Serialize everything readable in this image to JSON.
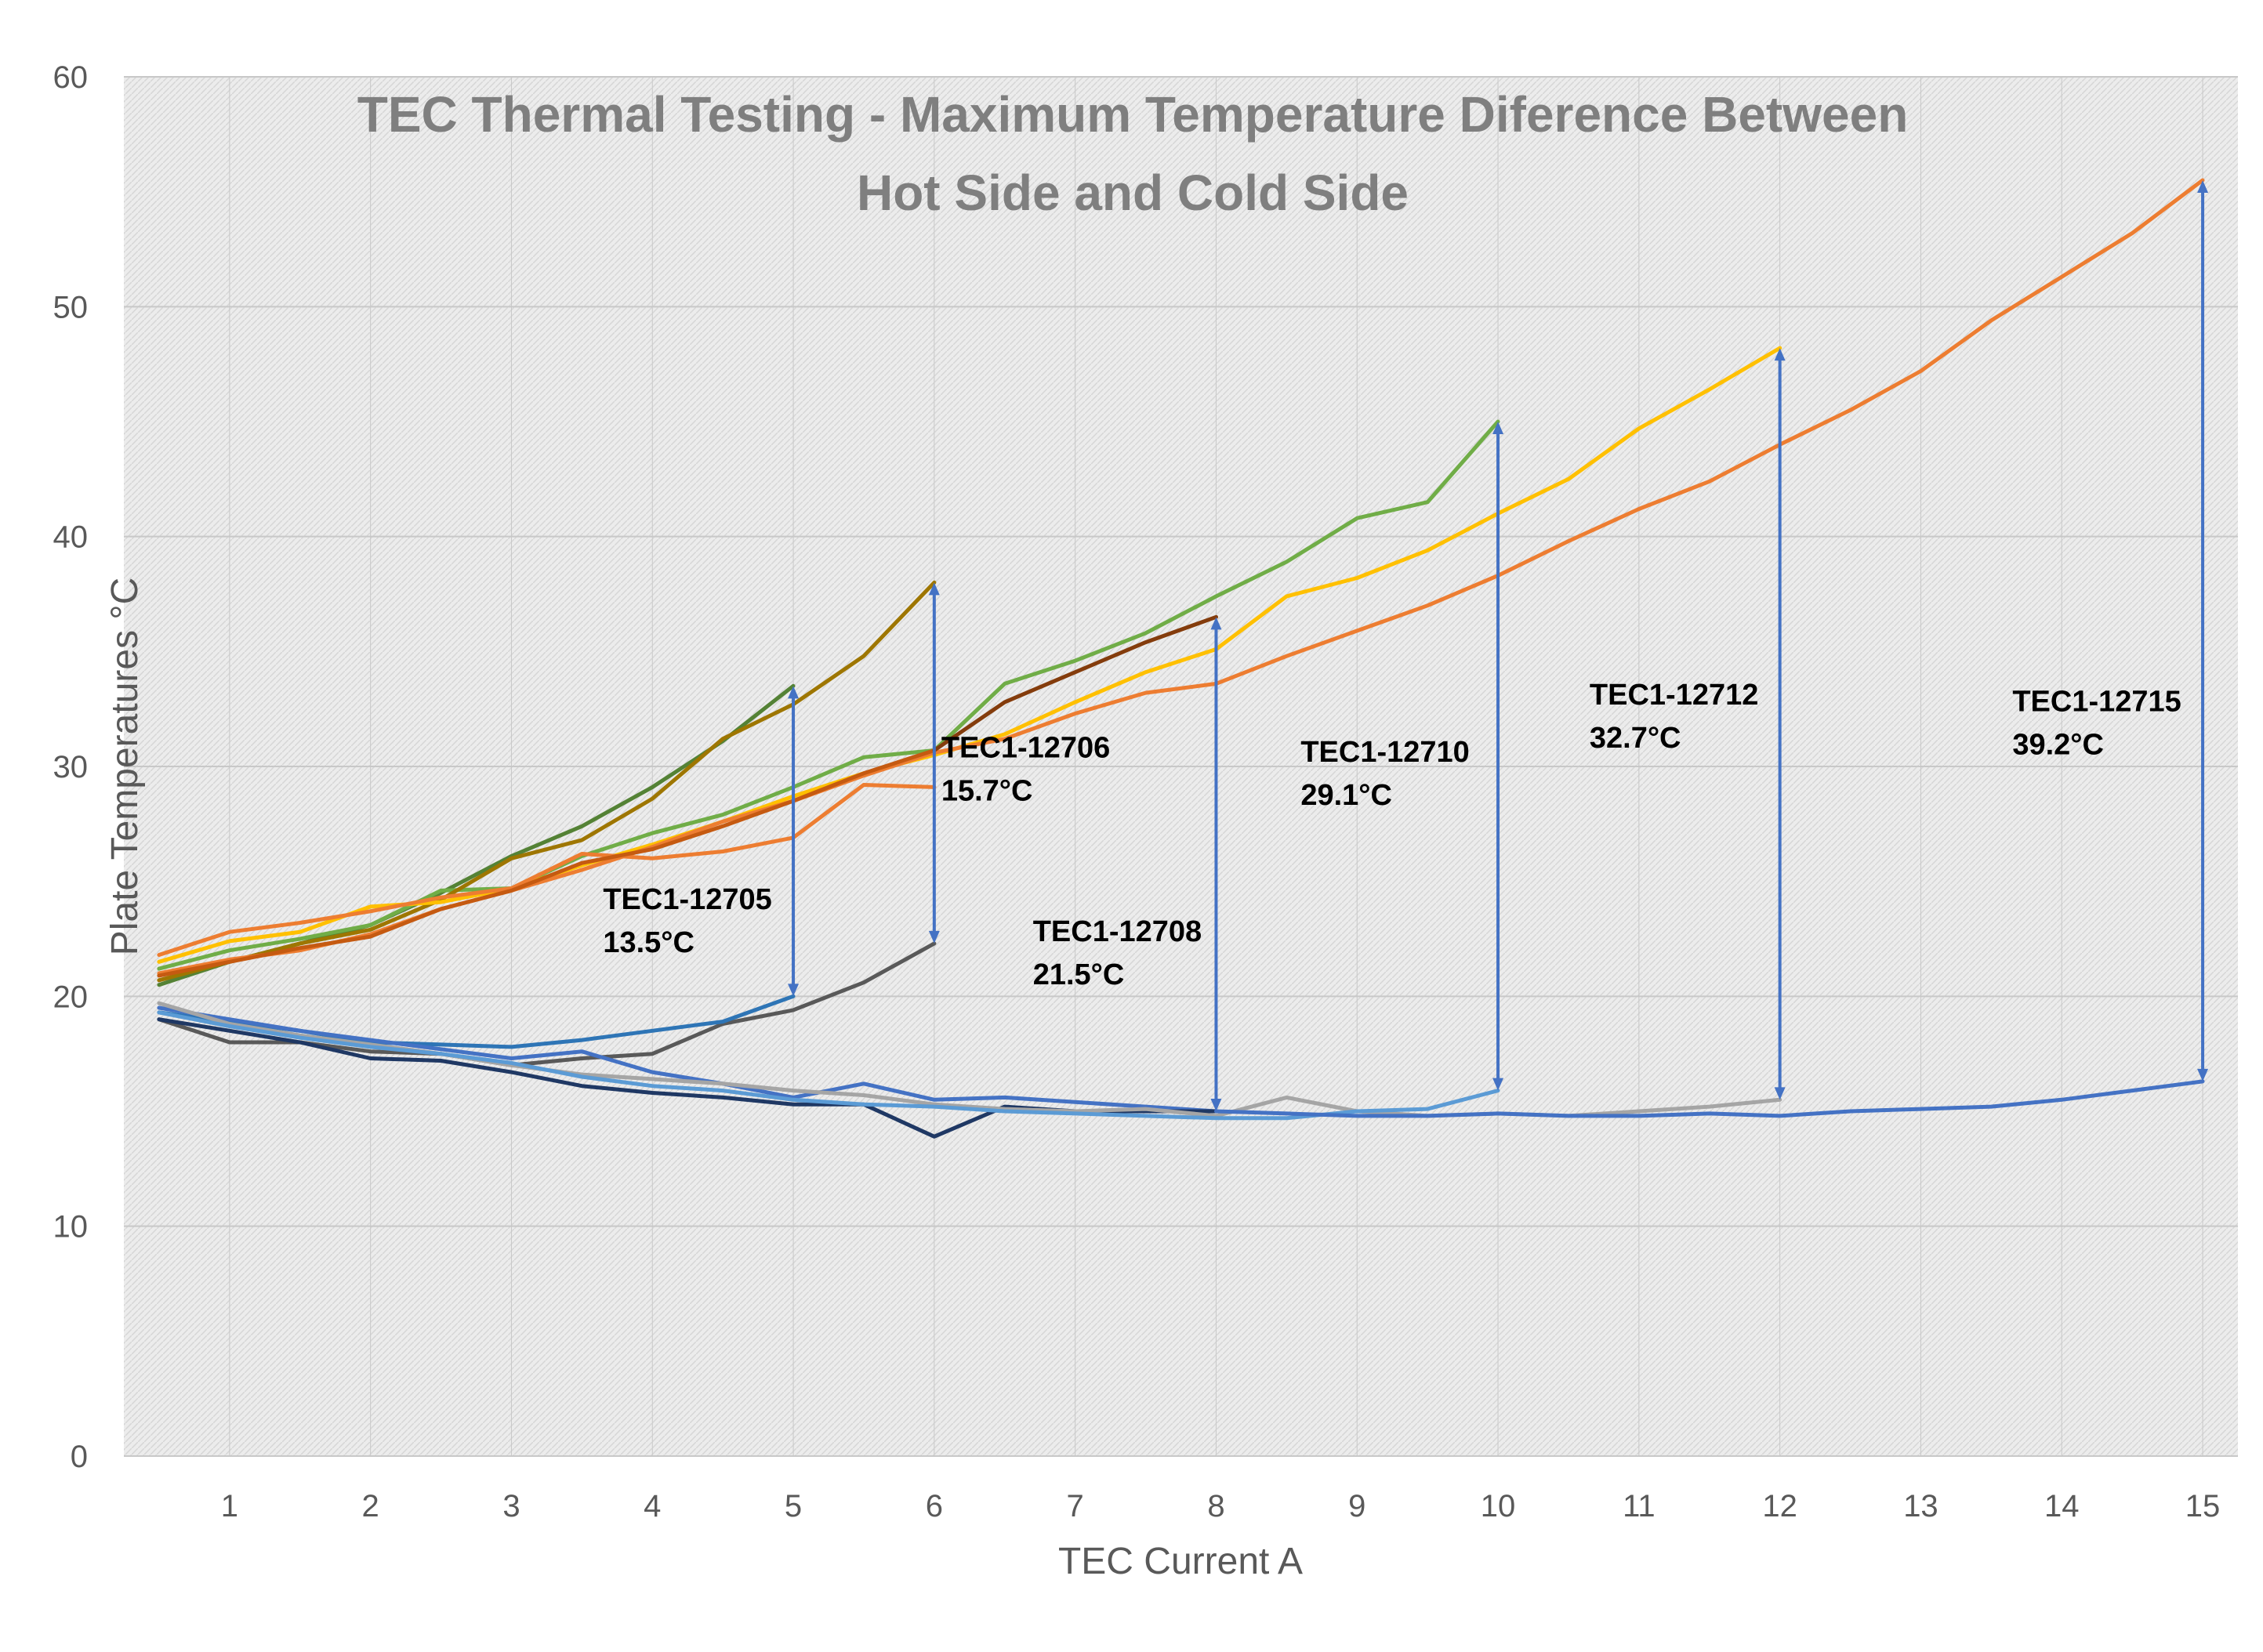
{
  "chart_data": {
    "type": "line",
    "title_lines": [
      "TEC Thermal Testing - Maximum Temperature Diference Between",
      "Hot Side and Cold Side"
    ],
    "xlabel": "TEC Current A",
    "ylabel": "Plate Temperatures °C",
    "xlim": [
      0.25,
      15.25
    ],
    "ylim": [
      0,
      60
    ],
    "x_ticks": [
      1,
      2,
      3,
      4,
      5,
      6,
      7,
      8,
      9,
      10,
      11,
      12,
      13,
      14,
      15
    ],
    "y_ticks": [
      0,
      10,
      20,
      30,
      40,
      50,
      60
    ],
    "grid": true,
    "colors": {
      "plot_background": "#ececec",
      "hatch": "#d6d6d6",
      "gridline": "#c8c8c8",
      "arrow": "#4472c4"
    },
    "series": [
      {
        "color": "#548235",
        "x": [
          0.5,
          1,
          1.5,
          2,
          2.5,
          3,
          3.5,
          4,
          4.5,
          5
        ],
        "y": [
          20.5,
          21.5,
          22.3,
          23.1,
          24.5,
          26.1,
          27.4,
          29.1,
          31.1,
          33.5
        ]
      },
      {
        "color": "#70ad47",
        "x": [
          0.5,
          1,
          1.5,
          2,
          2.5,
          3,
          3.5,
          4,
          4.5,
          5,
          5.5,
          6,
          6.5,
          7,
          7.5,
          8,
          8.5,
          9,
          9.5,
          10
        ],
        "y": [
          21.2,
          22.0,
          22.5,
          23.1,
          24.6,
          24.7,
          26.1,
          27.1,
          27.9,
          29.1,
          30.4,
          30.7,
          33.6,
          34.6,
          35.8,
          37.4,
          38.9,
          40.8,
          41.5,
          45.0
        ]
      },
      {
        "color": "#9e7600",
        "x": [
          0.5,
          1,
          1.5,
          2,
          2.5,
          3,
          3.5,
          4,
          4.5,
          5,
          5.5,
          6
        ],
        "y": [
          20.7,
          21.5,
          22.3,
          22.9,
          24.2,
          26.0,
          26.8,
          28.6,
          31.2,
          32.7,
          34.8,
          38.0
        ]
      },
      {
        "color": "#ffc000",
        "x": [
          0.5,
          1,
          1.5,
          2,
          2.5,
          3,
          3.5,
          4,
          4.5,
          5,
          5.5,
          6,
          6.5,
          7,
          7.5,
          8,
          8.5,
          9,
          9.5,
          10,
          10.5,
          11,
          11.5,
          12
        ],
        "y": [
          21.5,
          22.4,
          22.8,
          23.9,
          24.1,
          24.7,
          25.7,
          26.6,
          27.6,
          28.7,
          29.7,
          30.5,
          31.4,
          32.8,
          34.1,
          35.1,
          37.4,
          38.2,
          39.4,
          41.0,
          42.5,
          44.7,
          46.4,
          48.2
        ]
      },
      {
        "color": "#ed7d31",
        "x": [
          0.5,
          1,
          1.5,
          2,
          2.5,
          3,
          3.5,
          4,
          4.5,
          5,
          5.5,
          6
        ],
        "y": [
          21.8,
          22.8,
          23.2,
          23.7,
          24.3,
          24.7,
          26.2,
          26.0,
          26.3,
          26.9,
          29.2,
          29.1
        ]
      },
      {
        "color": "#ed7d31",
        "x": [
          0.5,
          1,
          1.5,
          2,
          2.5,
          3,
          3.5,
          4,
          4.5,
          5,
          5.5,
          6,
          6.5,
          7,
          7.5,
          8,
          8.5,
          9,
          9.5,
          10,
          10.5,
          11,
          11.5,
          12,
          12.5,
          13,
          13.5,
          14,
          14.5,
          15
        ],
        "y": [
          21.0,
          21.6,
          22.0,
          22.7,
          23.8,
          24.6,
          25.5,
          26.5,
          27.6,
          28.5,
          29.6,
          30.6,
          31.2,
          32.3,
          33.2,
          33.6,
          34.8,
          35.9,
          37.0,
          38.3,
          39.8,
          41.2,
          42.4,
          44.0,
          45.5,
          47.2,
          49.4,
          51.3,
          53.2,
          55.5
        ]
      },
      {
        "color": "#c55a11",
        "x": [
          0.5,
          1,
          1.5,
          2,
          2.5,
          3,
          3.5,
          4,
          4.5,
          5,
          5.5,
          6
        ],
        "y": [
          20.9,
          21.5,
          22.1,
          22.6,
          23.8,
          24.6,
          25.8,
          26.4,
          27.4,
          28.5,
          29.7,
          30.7
        ]
      },
      {
        "color": "#843c0c",
        "x": [
          6,
          6.5,
          7,
          7.5,
          8
        ],
        "y": [
          30.7,
          32.8,
          34.1,
          35.4,
          36.5
        ]
      },
      {
        "color": "#595959",
        "x": [
          0.5,
          1,
          1.5,
          2,
          2.5,
          3,
          3.5,
          4,
          4.5,
          5,
          5.5,
          6
        ],
        "y": [
          19.0,
          18.0,
          18.0,
          17.6,
          17.5,
          17.0,
          17.3,
          17.5,
          18.8,
          19.4,
          20.6,
          22.3
        ]
      },
      {
        "color": "#2e75b6",
        "x": [
          0.5,
          1,
          1.5,
          2,
          2.5,
          3,
          3.5,
          4,
          4.5,
          5
        ],
        "y": [
          19.3,
          18.9,
          18.5,
          18.0,
          17.9,
          17.8,
          18.1,
          18.5,
          18.9,
          20.0
        ]
      },
      {
        "color": "#4472c4",
        "x": [
          0.5,
          1,
          1.5,
          2,
          2.5,
          3,
          3.5,
          4,
          4.5,
          5,
          5.5,
          6,
          6.5,
          7,
          7.5,
          8
        ],
        "y": [
          19.5,
          19.0,
          18.5,
          18.1,
          17.7,
          17.3,
          17.6,
          16.7,
          16.2,
          15.6,
          16.2,
          15.5,
          15.6,
          15.4,
          15.2,
          15.0
        ]
      },
      {
        "color": "#1f3864",
        "x": [
          0.5,
          1,
          1.5,
          2,
          2.5,
          3,
          3.5,
          4,
          4.5,
          5,
          5.5,
          6,
          6.5,
          7,
          7.5,
          8
        ],
        "y": [
          19.0,
          18.5,
          18.0,
          17.3,
          17.2,
          16.7,
          16.1,
          15.8,
          15.6,
          15.3,
          15.3,
          13.9,
          15.2,
          15.0,
          15.0,
          15.0
        ]
      },
      {
        "color": "#a5a5a5",
        "x": [
          0.5,
          1,
          1.5,
          2,
          2.5,
          3,
          3.5,
          4,
          4.5,
          5,
          5.5,
          6,
          6.5,
          7,
          7.5,
          8,
          8.5,
          9,
          9.5,
          10,
          10.5,
          11,
          11.5,
          12
        ],
        "y": [
          19.7,
          18.8,
          18.3,
          17.9,
          17.5,
          17.0,
          16.6,
          16.4,
          16.2,
          15.9,
          15.7,
          15.3,
          15.1,
          15.0,
          15.1,
          14.8,
          15.6,
          15.0,
          14.8,
          14.9,
          14.8,
          15.0,
          15.2,
          15.5
        ]
      },
      {
        "color": "#5b9bd5",
        "x": [
          0.5,
          1,
          1.5,
          2,
          2.5,
          3,
          3.5,
          4,
          4.5,
          5,
          5.5,
          6,
          6.5,
          7,
          7.5,
          8,
          8.5,
          9,
          9.5,
          10
        ],
        "y": [
          19.3,
          18.7,
          18.2,
          17.8,
          17.5,
          17.1,
          16.5,
          16.1,
          15.9,
          15.5,
          15.3,
          15.2,
          15.0,
          14.9,
          14.8,
          14.7,
          14.7,
          15.0,
          15.1,
          15.9
        ]
      },
      {
        "color": "#4472c4",
        "x": [
          8,
          8.5,
          9,
          9.5,
          10,
          10.5,
          11,
          11.5,
          12,
          12.5,
          13,
          13.5,
          14,
          14.5,
          15
        ],
        "y": [
          15.0,
          14.9,
          14.8,
          14.8,
          14.9,
          14.8,
          14.8,
          14.9,
          14.8,
          15.0,
          15.1,
          15.2,
          15.5,
          15.9,
          16.3
        ]
      }
    ],
    "arrows": [
      {
        "x": 5,
        "y_bottom": 20.0,
        "y_top": 33.5
      },
      {
        "x": 6,
        "y_bottom": 22.3,
        "y_top": 38.0
      },
      {
        "x": 8,
        "y_bottom": 15.0,
        "y_top": 36.5
      },
      {
        "x": 10,
        "y_bottom": 15.9,
        "y_top": 45.0
      },
      {
        "x": 12,
        "y_bottom": 15.5,
        "y_top": 48.2
      },
      {
        "x": 15,
        "y_bottom": 16.3,
        "y_top": 55.5
      }
    ],
    "annotations": [
      {
        "name": "TEC1-12705",
        "delta": "13.5°C",
        "x": 3.65,
        "y": 23.8
      },
      {
        "name": "TEC1-12706",
        "delta": "15.7°C",
        "x": 6.05,
        "y": 30.4
      },
      {
        "name": "TEC1-12708",
        "delta": "21.5°C",
        "x": 6.7,
        "y": 22.4
      },
      {
        "name": "TEC1-12710",
        "delta": "29.1°C",
        "x": 8.6,
        "y": 30.2
      },
      {
        "name": "TEC1-12712",
        "delta": "32.7°C",
        "x": 10.65,
        "y": 32.7
      },
      {
        "name": "TEC1-12715",
        "delta": "39.2°C",
        "x": 13.65,
        "y": 32.4
      }
    ]
  }
}
